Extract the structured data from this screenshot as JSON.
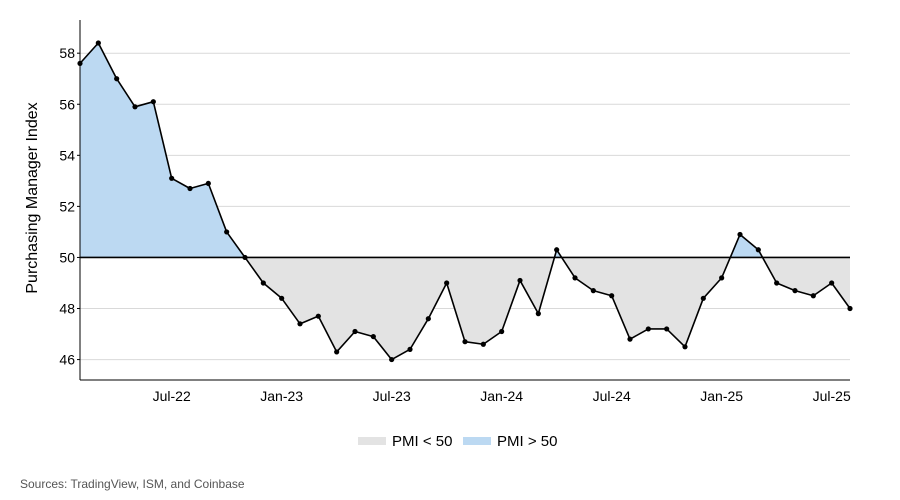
{
  "chart_data": {
    "type": "area",
    "ylabel": "Purchasing Manager Index",
    "xlabel": "",
    "ylim": [
      45.2,
      59.3
    ],
    "yticks": [
      46,
      48,
      50,
      52,
      54,
      56,
      58
    ],
    "threshold": 50,
    "grid": "horizontal",
    "legend_position": "bottom-center",
    "x_tick_labels": [
      "Jul-22",
      "Jan-23",
      "Jul-23",
      "Jan-24",
      "Jul-24",
      "Jan-25",
      "Jul-25"
    ],
    "x": [
      "Feb-22",
      "Mar-22",
      "Apr-22",
      "May-22",
      "Jun-22",
      "Jul-22",
      "Aug-22",
      "Sep-22",
      "Oct-22",
      "Nov-22",
      "Dec-22",
      "Jan-23",
      "Feb-23",
      "Mar-23",
      "Apr-23",
      "May-23",
      "Jun-23",
      "Jul-23",
      "Aug-23",
      "Sep-23",
      "Oct-23",
      "Nov-23",
      "Dec-23",
      "Jan-24",
      "Feb-24",
      "Mar-24",
      "Apr-24",
      "May-24",
      "Jun-24",
      "Jul-24",
      "Aug-24",
      "Sep-24",
      "Oct-24",
      "Nov-24",
      "Dec-24",
      "Jan-25",
      "Feb-25",
      "Mar-25",
      "Apr-25",
      "May-25",
      "Jun-25",
      "Jul-25",
      "Aug-25"
    ],
    "values": [
      57.6,
      58.4,
      57.0,
      55.9,
      56.1,
      53.1,
      52.7,
      52.9,
      51.0,
      50.0,
      49.0,
      48.4,
      47.4,
      47.7,
      46.3,
      47.1,
      46.9,
      46.0,
      46.4,
      47.6,
      49.0,
      46.7,
      46.6,
      47.1,
      49.1,
      47.8,
      50.3,
      49.2,
      48.7,
      48.5,
      46.8,
      47.2,
      47.2,
      46.5,
      48.4,
      49.2,
      50.9,
      50.3,
      49.0,
      48.7,
      48.5,
      49.0,
      48.0
    ],
    "legend": [
      {
        "label": "PMI < 50",
        "color": "#e3e3e3"
      },
      {
        "label": "PMI > 50",
        "color": "#bcd9f2"
      }
    ],
    "colors": {
      "above": "#bcd9f2",
      "below": "#e3e3e3",
      "line": "#000000",
      "grid": "#d9d9d9"
    }
  },
  "source": "Sources: TradingView, ISM, and Coinbase"
}
